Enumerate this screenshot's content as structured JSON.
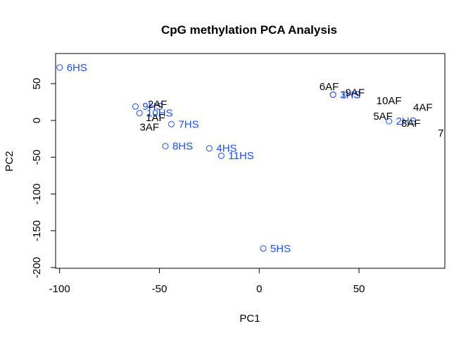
{
  "chart_data": {
    "type": "scatter",
    "title": "CpG methylation PCA Analysis",
    "xlabel": "PC1",
    "ylabel": "PC2",
    "xlim": [
      -102,
      93
    ],
    "ylim": [
      -201,
      91
    ],
    "xticks": [
      -100,
      -50,
      0,
      50
    ],
    "yticks": [
      -200,
      -150,
      -100,
      -50,
      0,
      50
    ],
    "grid": false,
    "colors": {
      "HS": "#1a50f0",
      "AF": "#000000"
    },
    "points": [
      {
        "label": "6HS",
        "group": "HS",
        "x": -100,
        "y": 72
      },
      {
        "label": "9HS",
        "group": "HS",
        "x": -62,
        "y": 19
      },
      {
        "label": "10HS",
        "group": "HS",
        "x": -60,
        "y": 10
      },
      {
        "label": "7HS",
        "group": "HS",
        "x": -44,
        "y": -5
      },
      {
        "label": "8HS",
        "group": "HS",
        "x": -47,
        "y": -35
      },
      {
        "label": "4HS",
        "group": "HS",
        "x": -25,
        "y": -38
      },
      {
        "label": "11HS",
        "group": "HS",
        "x": -19,
        "y": -48
      },
      {
        "label": "5HS",
        "group": "HS",
        "x": 2,
        "y": -174
      },
      {
        "label": "3HS",
        "group": "HS",
        "x": 37,
        "y": 35
      },
      {
        "label": "1HS",
        "group": "HS",
        "x": 37,
        "y": 35
      },
      {
        "label": "2HS",
        "group": "HS",
        "x": 65,
        "y": -1
      },
      {
        "label": "2AF",
        "group": "AF",
        "x": -51,
        "y": 22
      },
      {
        "label": "1AF",
        "group": "AF",
        "x": -52,
        "y": 4
      },
      {
        "label": "3AF",
        "group": "AF",
        "x": -55,
        "y": -9
      },
      {
        "label": "6AF",
        "group": "AF",
        "x": 35,
        "y": 46
      },
      {
        "label": "9AF",
        "group": "AF",
        "x": 48,
        "y": 38
      },
      {
        "label": "10AF",
        "group": "AF",
        "x": 65,
        "y": 27
      },
      {
        "label": "4AF",
        "group": "AF",
        "x": 82,
        "y": 18
      },
      {
        "label": "5AF",
        "group": "AF",
        "x": 62,
        "y": 6
      },
      {
        "label": "8AF",
        "group": "AF",
        "x": 76,
        "y": -4
      },
      {
        "label": "7",
        "group": "AF",
        "x": 91,
        "y": -17
      }
    ]
  }
}
